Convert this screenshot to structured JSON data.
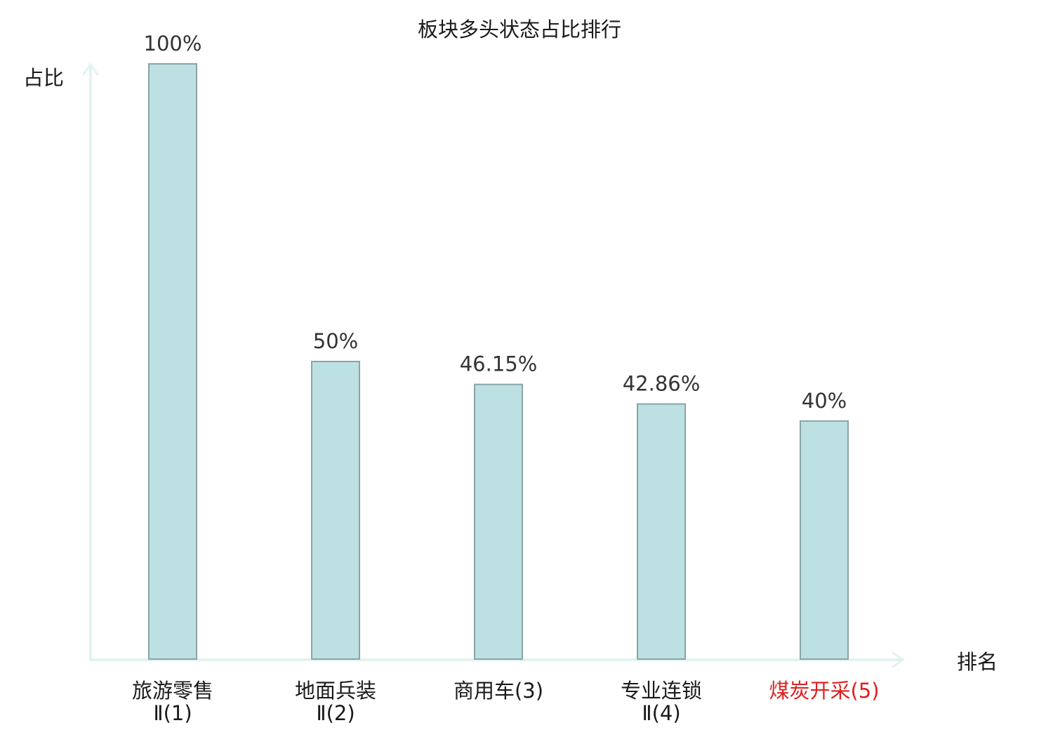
{
  "chart_data": {
    "type": "bar",
    "title": "板块多头状态占比排行",
    "ylabel": "占比",
    "xlabel": "排名",
    "ylim": [
      0,
      100
    ],
    "grid": false,
    "categories": [
      {
        "line1": "旅游零售",
        "line2": "Ⅱ(1)",
        "highlight": false
      },
      {
        "line1": "地面兵装",
        "line2": "Ⅱ(2)",
        "highlight": false
      },
      {
        "line1": "商用车(3)",
        "line2": "",
        "highlight": false
      },
      {
        "line1": "专业连锁",
        "line2": "Ⅱ(4)",
        "highlight": false
      },
      {
        "line1": "煤炭开采(5)",
        "line2": "",
        "highlight": true
      }
    ],
    "values": [
      100,
      50,
      46.15,
      42.86,
      40
    ],
    "value_labels": [
      "100%",
      "50%",
      "46.15%",
      "42.86%",
      "40%"
    ],
    "colors": {
      "bar_fill": "#bde0e2",
      "bar_stroke": "#89a4a6",
      "axis": "#e1f3f1",
      "text": "#333333",
      "highlight_text": "#e02020"
    }
  }
}
